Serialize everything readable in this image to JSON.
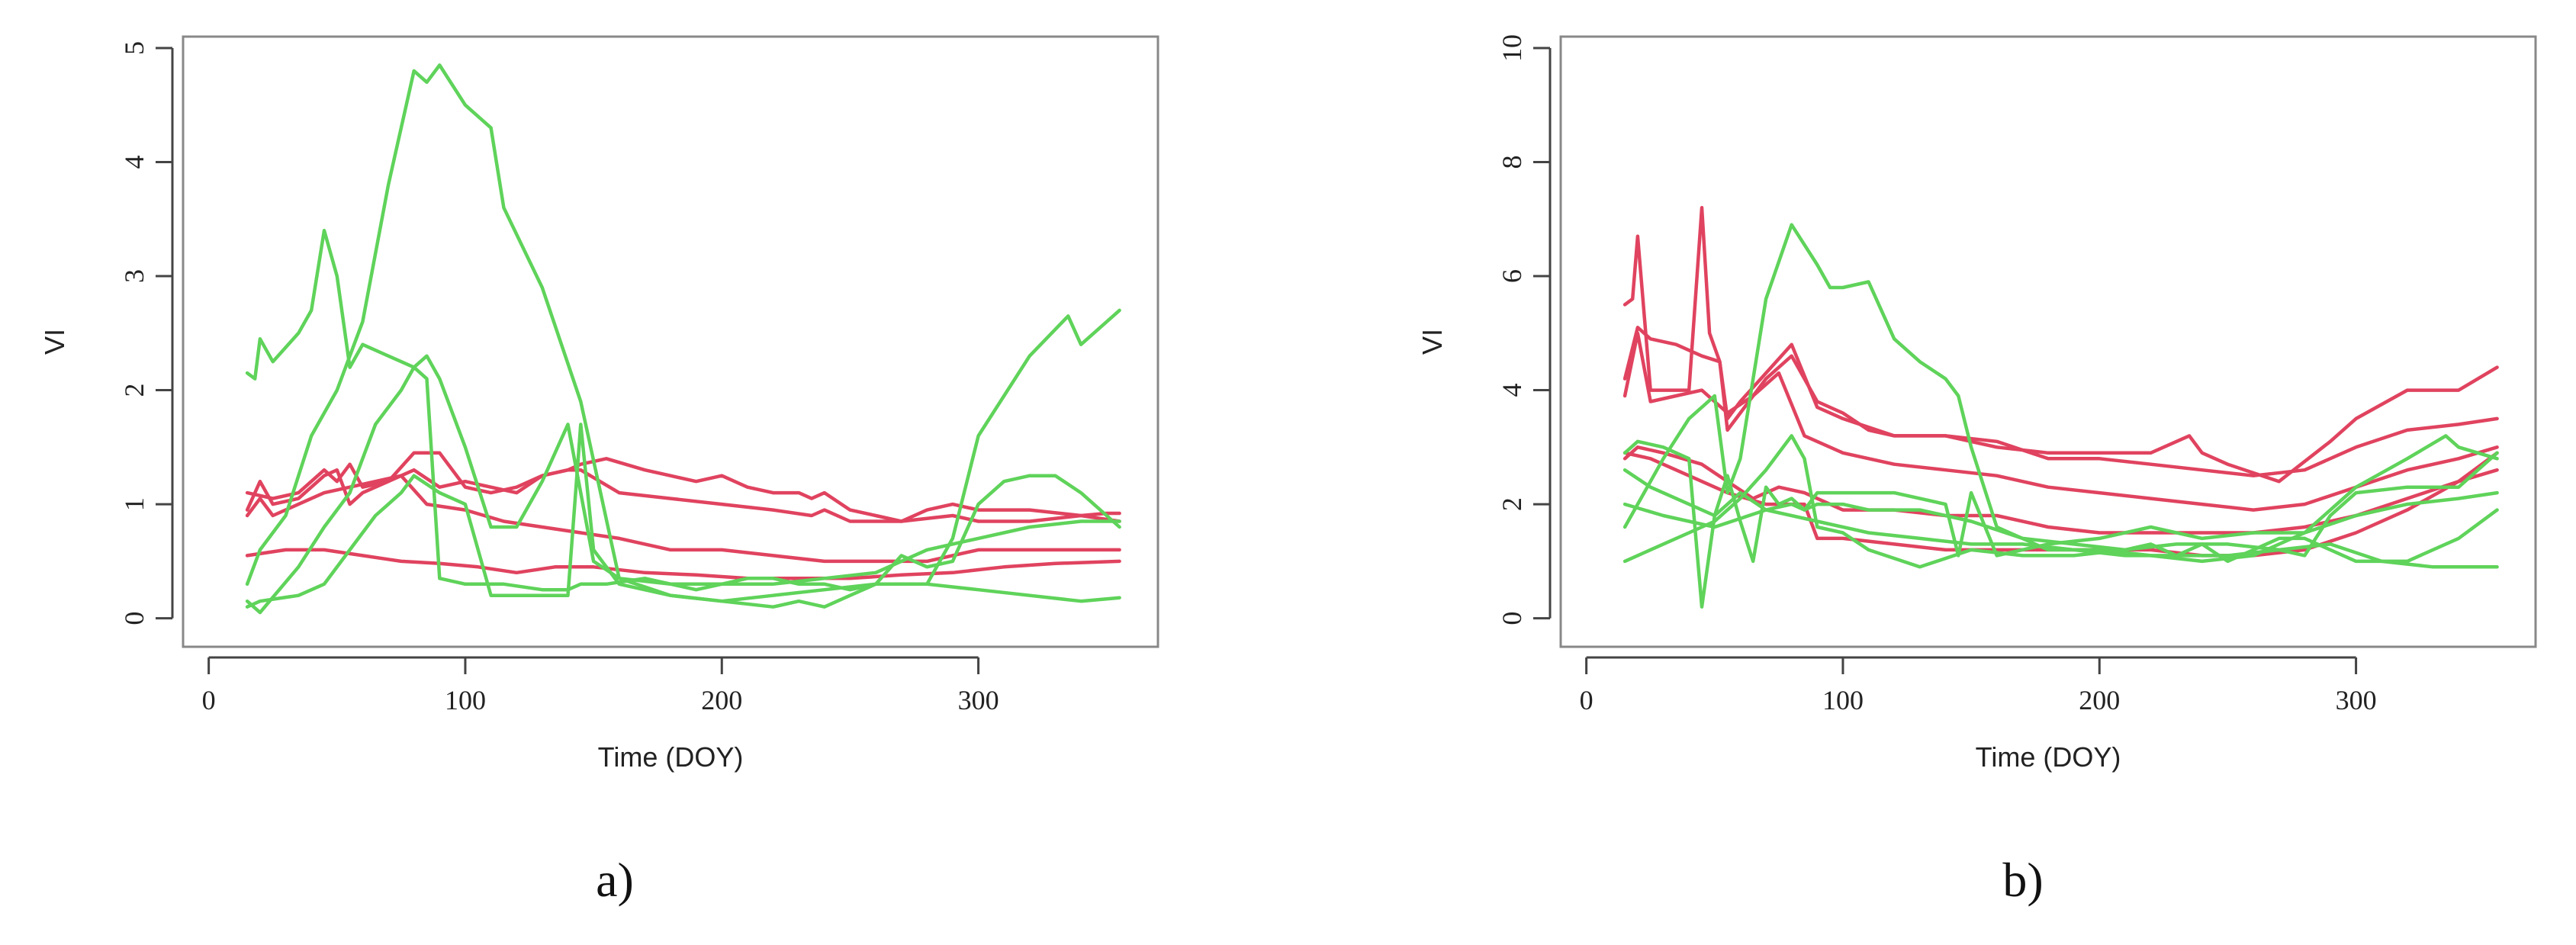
{
  "chart_data": [
    {
      "type": "line",
      "caption": "a)",
      "xlabel": "Time (DOY)",
      "ylabel": "VI",
      "xlim": [
        -10,
        370
      ],
      "ylim": [
        -0.25,
        5.1
      ],
      "xticks": [
        0,
        100,
        200,
        300
      ],
      "yticks": [
        0,
        1,
        2,
        3,
        4,
        5
      ],
      "grid": false,
      "colors": {
        "red": "#e0435f",
        "green": "#5fd35a"
      },
      "series": [
        {
          "color": "red",
          "x": [
            15,
            20,
            25,
            35,
            45,
            50,
            55,
            60,
            70,
            80,
            90,
            100,
            110,
            120,
            130,
            140,
            145,
            155,
            170,
            180,
            190,
            200,
            210,
            220,
            230,
            235,
            240,
            250,
            260,
            270,
            280,
            290,
            300,
            320,
            340,
            350,
            355
          ],
          "y": [
            0.95,
            1.2,
            1.0,
            1.05,
            1.25,
            1.3,
            1.0,
            1.1,
            1.2,
            1.45,
            1.45,
            1.15,
            1.1,
            1.15,
            1.25,
            1.3,
            1.35,
            1.4,
            1.3,
            1.25,
            1.2,
            1.25,
            1.15,
            1.1,
            1.1,
            1.05,
            1.1,
            0.95,
            0.9,
            0.85,
            0.95,
            1.0,
            0.95,
            0.95,
            0.9,
            0.92,
            0.92
          ]
        },
        {
          "color": "red",
          "x": [
            15,
            25,
            35,
            45,
            50,
            55,
            60,
            70,
            80,
            90,
            100,
            110,
            120,
            130,
            140,
            145,
            160,
            180,
            200,
            220,
            235,
            240,
            250,
            270,
            290,
            300,
            320,
            340,
            355
          ],
          "y": [
            1.1,
            1.05,
            1.1,
            1.3,
            1.2,
            1.35,
            1.15,
            1.2,
            1.3,
            1.15,
            1.2,
            1.15,
            1.1,
            1.25,
            1.3,
            1.3,
            1.1,
            1.05,
            1.0,
            0.95,
            0.9,
            0.95,
            0.85,
            0.85,
            0.9,
            0.85,
            0.85,
            0.9,
            0.85
          ]
        },
        {
          "color": "red",
          "x": [
            15,
            20,
            25,
            35,
            45,
            55,
            65,
            75,
            85,
            100,
            115,
            130,
            145,
            160,
            180,
            200,
            220,
            240,
            260,
            280,
            300,
            320,
            340,
            355
          ],
          "y": [
            0.9,
            1.05,
            0.9,
            1.0,
            1.1,
            1.15,
            1.2,
            1.25,
            1.0,
            0.95,
            0.85,
            0.8,
            0.75,
            0.7,
            0.6,
            0.6,
            0.55,
            0.5,
            0.5,
            0.5,
            0.6,
            0.6,
            0.6,
            0.6
          ]
        },
        {
          "color": "red",
          "x": [
            15,
            30,
            45,
            60,
            75,
            90,
            105,
            120,
            135,
            150,
            170,
            190,
            210,
            230,
            250,
            270,
            290,
            310,
            330,
            355
          ],
          "y": [
            0.55,
            0.6,
            0.6,
            0.55,
            0.5,
            0.48,
            0.45,
            0.4,
            0.45,
            0.45,
            0.4,
            0.38,
            0.35,
            0.35,
            0.35,
            0.38,
            0.4,
            0.45,
            0.48,
            0.5
          ]
        },
        {
          "color": "green",
          "x": [
            15,
            18,
            20,
            25,
            35,
            40,
            45,
            50,
            55,
            60,
            70,
            80,
            85,
            90,
            100,
            110,
            120,
            130,
            140,
            145,
            150,
            160,
            180,
            200,
            220,
            240,
            260,
            280,
            300,
            320,
            340,
            355
          ],
          "y": [
            2.15,
            2.1,
            2.45,
            2.25,
            2.5,
            2.7,
            3.4,
            3.0,
            2.2,
            2.4,
            2.3,
            2.2,
            2.3,
            2.1,
            1.5,
            0.8,
            0.8,
            1.2,
            1.7,
            1.1,
            0.5,
            0.35,
            0.3,
            0.3,
            0.3,
            0.35,
            0.4,
            0.6,
            0.7,
            0.8,
            0.85,
            0.85
          ]
        },
        {
          "color": "green",
          "x": [
            15,
            20,
            30,
            40,
            50,
            60,
            70,
            80,
            85,
            90,
            100,
            110,
            115,
            130,
            145,
            160,
            180,
            200,
            220,
            240,
            260,
            270,
            280,
            290,
            300,
            320,
            335,
            340,
            355
          ],
          "y": [
            0.3,
            0.6,
            0.9,
            1.6,
            2.0,
            2.6,
            3.8,
            4.8,
            4.7,
            4.85,
            4.5,
            4.3,
            3.6,
            2.9,
            1.9,
            0.35,
            0.2,
            0.15,
            0.2,
            0.25,
            0.3,
            0.3,
            0.3,
            0.7,
            1.6,
            2.3,
            2.65,
            2.4,
            2.7
          ]
        },
        {
          "color": "green",
          "x": [
            15,
            20,
            35,
            45,
            55,
            65,
            75,
            80,
            85,
            90,
            100,
            115,
            130,
            140,
            145,
            155,
            170,
            190,
            200,
            210,
            220,
            230,
            240,
            250,
            260,
            270,
            280,
            290,
            300,
            310,
            320,
            330,
            340,
            355
          ],
          "y": [
            0.15,
            0.05,
            0.45,
            0.8,
            1.1,
            1.7,
            2.0,
            2.2,
            2.1,
            0.35,
            0.3,
            0.3,
            0.25,
            0.25,
            0.3,
            0.3,
            0.35,
            0.25,
            0.3,
            0.35,
            0.35,
            0.3,
            0.3,
            0.25,
            0.3,
            0.55,
            0.45,
            0.5,
            1.0,
            1.2,
            1.25,
            1.25,
            1.1,
            0.8
          ]
        },
        {
          "color": "green",
          "x": [
            15,
            20,
            35,
            45,
            55,
            65,
            75,
            80,
            90,
            100,
            110,
            125,
            140,
            145,
            150,
            160,
            180,
            200,
            220,
            230,
            240,
            250,
            260,
            270,
            280,
            300,
            320,
            340,
            355
          ],
          "y": [
            0.1,
            0.15,
            0.2,
            0.3,
            0.6,
            0.9,
            1.1,
            1.25,
            1.1,
            1.0,
            0.2,
            0.2,
            0.2,
            1.7,
            0.6,
            0.3,
            0.2,
            0.15,
            0.1,
            0.15,
            0.1,
            0.2,
            0.3,
            0.3,
            0.3,
            0.25,
            0.2,
            0.15,
            0.18
          ]
        }
      ]
    },
    {
      "type": "line",
      "caption": "b)",
      "xlabel": "Time (DOY)",
      "ylabel": "VI",
      "xlim": [
        -10,
        370
      ],
      "ylim": [
        -0.5,
        10.2
      ],
      "xticks": [
        0,
        100,
        200,
        300
      ],
      "yticks": [
        0,
        2,
        4,
        6,
        8,
        10
      ],
      "grid": false,
      "colors": {
        "red": "#e0435f",
        "green": "#5fd35a"
      },
      "series": [
        {
          "color": "red",
          "x": [
            15,
            18,
            20,
            25,
            30,
            40,
            45,
            48,
            52,
            55,
            60,
            70,
            80,
            90,
            100,
            110,
            120,
            140,
            160,
            180,
            200,
            220,
            235,
            240,
            250,
            270,
            290,
            300,
            320,
            340,
            355
          ],
          "y": [
            5.5,
            5.6,
            6.7,
            4.0,
            4.0,
            4.0,
            7.2,
            5.0,
            4.5,
            3.3,
            3.6,
            4.2,
            4.6,
            3.8,
            3.6,
            3.3,
            3.2,
            3.2,
            3.0,
            2.9,
            2.9,
            2.9,
            3.2,
            2.9,
            2.7,
            2.4,
            3.1,
            3.5,
            4.0,
            4.0,
            4.4
          ]
        },
        {
          "color": "red",
          "x": [
            15,
            20,
            25,
            35,
            45,
            52,
            55,
            60,
            70,
            80,
            90,
            100,
            120,
            140,
            160,
            180,
            200,
            220,
            240,
            260,
            280,
            300,
            320,
            340,
            355
          ],
          "y": [
            4.2,
            5.1,
            4.9,
            4.8,
            4.6,
            4.5,
            3.5,
            3.8,
            4.3,
            4.8,
            3.7,
            3.5,
            3.2,
            3.2,
            3.1,
            2.8,
            2.8,
            2.7,
            2.6,
            2.5,
            2.6,
            3.0,
            3.3,
            3.4,
            3.5
          ]
        },
        {
          "color": "red",
          "x": [
            15,
            20,
            25,
            35,
            45,
            55,
            65,
            75,
            85,
            100,
            120,
            140,
            160,
            180,
            200,
            220,
            240,
            260,
            280,
            300,
            320,
            340,
            355
          ],
          "y": [
            3.9,
            5.0,
            3.8,
            3.9,
            4.0,
            3.6,
            3.9,
            4.3,
            3.2,
            2.9,
            2.7,
            2.6,
            2.5,
            2.3,
            2.2,
            2.1,
            2.0,
            1.9,
            2.0,
            2.3,
            2.6,
            2.8,
            3.0
          ]
        },
        {
          "color": "red",
          "x": [
            15,
            20,
            30,
            45,
            55,
            65,
            75,
            85,
            100,
            120,
            140,
            160,
            180,
            200,
            220,
            240,
            260,
            280,
            300,
            320,
            340,
            355
          ],
          "y": [
            2.8,
            3.0,
            2.9,
            2.7,
            2.4,
            2.1,
            2.3,
            2.2,
            1.9,
            1.9,
            1.8,
            1.8,
            1.6,
            1.5,
            1.5,
            1.5,
            1.5,
            1.6,
            1.8,
            2.1,
            2.4,
            2.6
          ]
        },
        {
          "color": "red",
          "x": [
            15,
            25,
            40,
            55,
            70,
            85,
            90,
            100,
            120,
            140,
            160,
            180,
            200,
            220,
            240,
            260,
            280,
            300,
            320,
            340,
            355
          ],
          "y": [
            2.9,
            2.8,
            2.5,
            2.2,
            2.0,
            2.0,
            1.4,
            1.4,
            1.3,
            1.2,
            1.2,
            1.2,
            1.2,
            1.2,
            1.1,
            1.1,
            1.2,
            1.5,
            1.9,
            2.4,
            2.9
          ]
        },
        {
          "color": "green",
          "x": [
            15,
            20,
            30,
            40,
            50,
            55,
            60,
            70,
            80,
            90,
            95,
            100,
            110,
            120,
            130,
            140,
            145,
            150,
            160,
            180,
            200,
            220,
            240,
            260,
            280,
            300,
            320,
            335,
            340,
            355
          ],
          "y": [
            1.6,
            2.0,
            2.8,
            3.5,
            3.9,
            2.2,
            2.8,
            5.6,
            6.9,
            6.2,
            5.8,
            5.8,
            5.9,
            4.9,
            4.5,
            4.2,
            3.9,
            3.0,
            1.6,
            1.2,
            1.2,
            1.1,
            1.0,
            1.1,
            1.5,
            2.3,
            2.8,
            3.2,
            3.0,
            2.8
          ]
        },
        {
          "color": "green",
          "x": [
            15,
            20,
            30,
            40,
            45,
            50,
            55,
            60,
            65,
            70,
            75,
            80,
            85,
            90,
            100,
            120,
            140,
            145,
            150,
            160,
            180,
            200,
            220,
            240,
            260,
            280,
            300,
            320,
            340,
            355
          ],
          "y": [
            2.9,
            3.1,
            3.0,
            2.8,
            0.2,
            1.8,
            2.5,
            1.7,
            1.0,
            2.3,
            2.0,
            2.1,
            1.9,
            2.2,
            2.2,
            2.2,
            2.0,
            1.1,
            2.2,
            1.1,
            1.3,
            1.4,
            1.6,
            1.4,
            1.5,
            1.5,
            1.8,
            2.0,
            2.1,
            2.2
          ]
        },
        {
          "color": "green",
          "x": [
            15,
            25,
            40,
            50,
            60,
            70,
            80,
            85,
            90,
            100,
            110,
            130,
            150,
            170,
            190,
            210,
            230,
            250,
            270,
            280,
            290,
            300,
            320,
            340,
            355
          ],
          "y": [
            2.6,
            2.3,
            2.0,
            1.8,
            2.2,
            1.9,
            2.0,
            1.9,
            2.0,
            2.0,
            1.9,
            1.9,
            1.7,
            1.4,
            1.3,
            1.2,
            1.3,
            1.3,
            1.2,
            1.1,
            1.8,
            2.2,
            2.3,
            2.3,
            2.9
          ]
        },
        {
          "color": "green",
          "x": [
            15,
            20,
            30,
            40,
            50,
            60,
            70,
            80,
            85,
            90,
            100,
            110,
            130,
            150,
            170,
            190,
            210,
            220,
            230,
            240,
            250,
            260,
            270,
            280,
            300,
            320,
            340,
            355
          ],
          "y": [
            1.0,
            1.1,
            1.3,
            1.5,
            1.7,
            2.1,
            2.6,
            3.2,
            2.8,
            1.6,
            1.5,
            1.2,
            0.9,
            1.2,
            1.1,
            1.1,
            1.2,
            1.3,
            1.1,
            1.3,
            1.0,
            1.2,
            1.4,
            1.4,
            1.0,
            1.0,
            1.4,
            1.9
          ]
        },
        {
          "color": "green",
          "x": [
            15,
            30,
            50,
            70,
            90,
            110,
            130,
            150,
            170,
            190,
            210,
            230,
            250,
            270,
            290,
            310,
            330,
            345,
            355
          ],
          "y": [
            2.0,
            1.8,
            1.6,
            1.9,
            1.7,
            1.5,
            1.4,
            1.3,
            1.3,
            1.2,
            1.1,
            1.1,
            1.1,
            1.2,
            1.3,
            1.0,
            0.9,
            0.9,
            0.9
          ]
        }
      ]
    }
  ]
}
